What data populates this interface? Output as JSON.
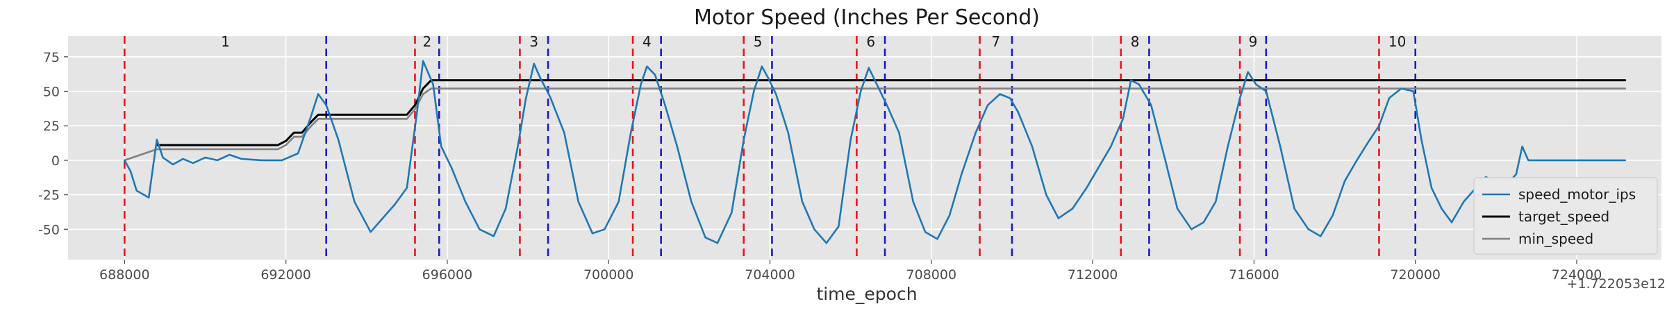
{
  "chart_data": {
    "type": "line",
    "title": "Motor Speed (Inches Per Second)",
    "xlabel": "time_epoch",
    "ylabel": "",
    "x_offset_label": "+1.722053e12",
    "xlim": [
      686600,
      726100
    ],
    "ylim": [
      -72,
      90
    ],
    "xticks": [
      688000,
      692000,
      696000,
      700000,
      704000,
      708000,
      712000,
      716000,
      720000,
      724000
    ],
    "yticks": [
      -50,
      -25,
      0,
      25,
      50,
      75
    ],
    "grid": true,
    "legend_position": "lower-right",
    "colors": {
      "speed_motor_ips": "#1f77b4",
      "target_speed": "#000000",
      "min_speed": "#808080",
      "start_line": "#e8141c",
      "end_line": "#1a1acc",
      "plot_background": "#e5e5e5",
      "grid": "#ffffff"
    },
    "segments": [
      {
        "label": "1",
        "start": 688000,
        "end": 693000
      },
      {
        "label": "2",
        "start": 695200,
        "end": 695800
      },
      {
        "label": "3",
        "start": 697800,
        "end": 698500
      },
      {
        "label": "4",
        "start": 700600,
        "end": 701300
      },
      {
        "label": "5",
        "start": 703350,
        "end": 704050
      },
      {
        "label": "6",
        "start": 706150,
        "end": 706850
      },
      {
        "label": "7",
        "start": 709200,
        "end": 710000
      },
      {
        "label": "8",
        "start": 712700,
        "end": 713400
      },
      {
        "label": "9",
        "start": 715650,
        "end": 716300
      },
      {
        "label": "10",
        "start": 719100,
        "end": 720000
      }
    ],
    "series": [
      {
        "name": "speed_motor_ips",
        "x": [
          688000,
          688150,
          688300,
          688600,
          688800,
          688950,
          689200,
          689450,
          689700,
          690000,
          690300,
          690600,
          690900,
          691400,
          691900,
          692300,
          692600,
          692800,
          693000,
          693300,
          693700,
          694100,
          694400,
          694700,
          695000,
          695250,
          695400,
          695650,
          695850,
          696100,
          696450,
          696800,
          697150,
          697450,
          697750,
          697950,
          698150,
          698300,
          698550,
          698900,
          699250,
          699600,
          699900,
          700250,
          700550,
          700800,
          700950,
          701150,
          701400,
          701700,
          702050,
          702400,
          702700,
          703050,
          703350,
          703600,
          703800,
          703950,
          704150,
          704450,
          704800,
          705100,
          705400,
          705700,
          706000,
          706250,
          706450,
          706650,
          706900,
          707200,
          707550,
          707850,
          708150,
          708450,
          708750,
          709100,
          709400,
          709700,
          709950,
          710150,
          710500,
          710850,
          711150,
          711500,
          711850,
          712150,
          712450,
          712750,
          712950,
          713150,
          713450,
          713800,
          714100,
          714450,
          714750,
          715050,
          715350,
          715650,
          715850,
          716050,
          716300,
          716650,
          717000,
          717350,
          717650,
          717950,
          718250,
          718550,
          718850,
          719100,
          719350,
          719650,
          719950,
          720150,
          720400,
          720650,
          720900,
          721200,
          721500,
          721750,
          722000,
          722200,
          722350,
          722500,
          722650,
          722800,
          722950,
          725200
        ],
        "y": [
          0,
          -8,
          -22,
          -27,
          15,
          2,
          -3,
          1,
          -2,
          2,
          0,
          4,
          1,
          0,
          0,
          5,
          30,
          48,
          40,
          15,
          -30,
          -52,
          -42,
          -32,
          -20,
          35,
          72,
          55,
          10,
          -5,
          -30,
          -50,
          -55,
          -35,
          10,
          45,
          70,
          60,
          46,
          20,
          -30,
          -53,
          -50,
          -30,
          20,
          55,
          68,
          62,
          40,
          10,
          -30,
          -56,
          -60,
          -38,
          15,
          50,
          68,
          60,
          48,
          20,
          -30,
          -50,
          -60,
          -48,
          15,
          50,
          67,
          55,
          40,
          20,
          -30,
          -52,
          -57,
          -40,
          -10,
          20,
          40,
          48,
          45,
          35,
          10,
          -25,
          -42,
          -35,
          -20,
          -5,
          10,
          30,
          58,
          55,
          40,
          0,
          -35,
          -50,
          -45,
          -30,
          10,
          45,
          64,
          55,
          50,
          10,
          -35,
          -50,
          -55,
          -40,
          -15,
          0,
          14,
          25,
          45,
          52,
          50,
          15,
          -20,
          -35,
          -45,
          -30,
          -20,
          -12,
          -18,
          -20,
          -15,
          -10,
          10,
          0,
          0,
          0
        ]
      },
      {
        "name": "target_speed",
        "x": [
          688800,
          690500,
          691800,
          692000,
          692200,
          692400,
          692600,
          692800,
          693000,
          694200,
          695000,
          695200,
          695400,
          695600,
          696000,
          725200
        ],
        "y": [
          11,
          11,
          11,
          14,
          20,
          20,
          27,
          33,
          33,
          33,
          33,
          40,
          52,
          58,
          58,
          58
        ]
      },
      {
        "name": "min_speed",
        "x": [
          688000,
          688800,
          690500,
          691800,
          692000,
          692200,
          692400,
          692600,
          692800,
          693000,
          694200,
          695000,
          695200,
          695400,
          695600,
          696000,
          725200
        ],
        "y": [
          0,
          8,
          8,
          8,
          11,
          17,
          17,
          24,
          30,
          30,
          30,
          30,
          37,
          48,
          52,
          52,
          52
        ]
      }
    ]
  }
}
